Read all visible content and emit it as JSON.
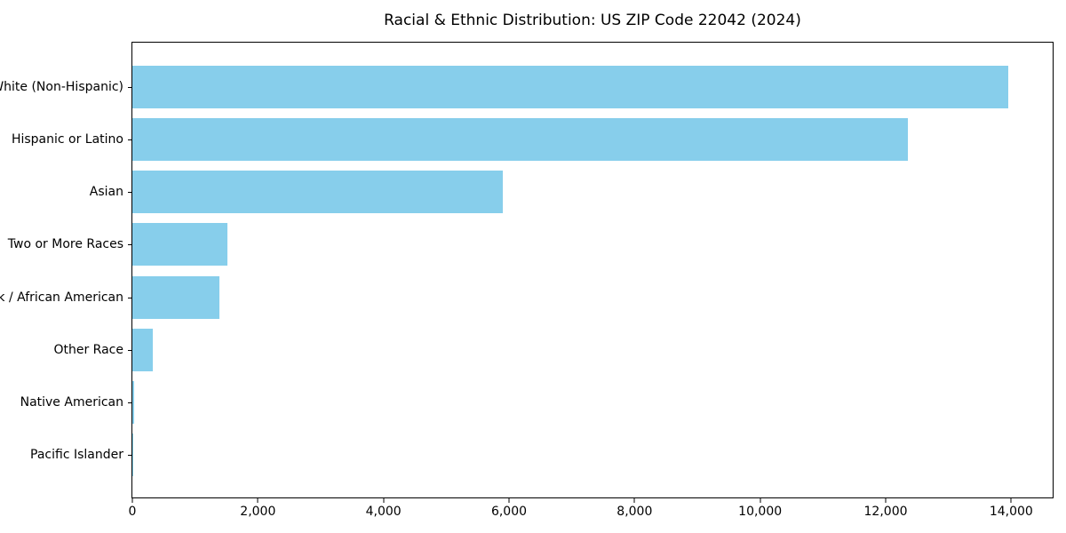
{
  "chart_data": {
    "type": "bar",
    "orientation": "horizontal",
    "title": "Racial & Ethnic Distribution: US ZIP Code 22042 (2024)",
    "categories": [
      "White (Non-Hispanic)",
      "Hispanic or Latino",
      "Asian",
      "Two or More Races",
      "Black / African American",
      "Other Race",
      "Native American",
      "Pacific Islander"
    ],
    "values": [
      13950,
      12350,
      5900,
      1510,
      1390,
      330,
      25,
      10
    ],
    "xlabel": "",
    "ylabel": "",
    "xlim": [
      0,
      14660
    ],
    "x_ticks": [
      0,
      2000,
      4000,
      6000,
      8000,
      10000,
      12000,
      14000
    ],
    "x_tick_labels": [
      "0",
      "2,000",
      "4,000",
      "6,000",
      "8,000",
      "10,000",
      "12,000",
      "14,000"
    ],
    "bar_color": "#87CEEB",
    "grid": false,
    "legend_position": "none"
  }
}
